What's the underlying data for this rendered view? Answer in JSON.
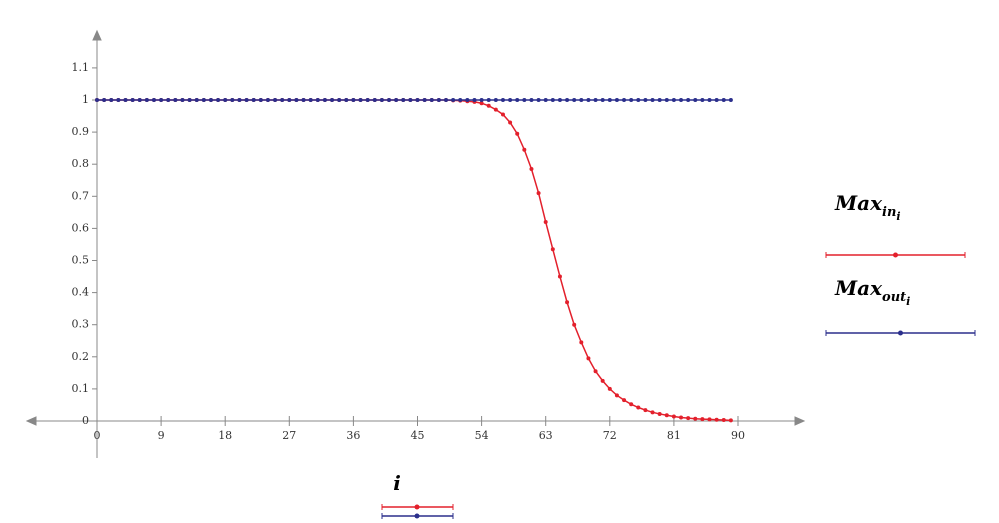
{
  "chart_data": {
    "type": "line",
    "x_label": "i",
    "x": [
      0,
      1,
      2,
      3,
      4,
      5,
      6,
      7,
      8,
      9,
      10,
      11,
      12,
      13,
      14,
      15,
      16,
      17,
      18,
      19,
      20,
      21,
      22,
      23,
      24,
      25,
      26,
      27,
      28,
      29,
      30,
      31,
      32,
      33,
      34,
      35,
      36,
      37,
      38,
      39,
      40,
      41,
      42,
      43,
      44,
      45,
      46,
      47,
      48,
      49,
      50,
      51,
      52,
      53,
      54,
      55,
      56,
      57,
      58,
      59,
      60,
      61,
      62,
      63,
      64,
      65,
      66,
      67,
      68,
      69,
      70,
      71,
      72,
      73,
      74,
      75,
      76,
      77,
      78,
      79,
      80,
      81,
      82,
      83,
      84,
      85,
      86,
      87,
      88,
      89
    ],
    "series": [
      {
        "name": "Max",
        "name_sub": "in",
        "name_subsub": "i",
        "color": "#e3202c",
        "values": [
          1,
          1,
          1,
          1,
          1,
          1,
          1,
          1,
          1,
          1,
          1,
          1,
          1,
          1,
          1,
          1,
          1,
          1,
          1,
          1,
          1,
          1,
          1,
          1,
          1,
          1,
          1,
          1,
          1,
          1,
          1,
          1,
          1,
          1,
          1,
          1,
          1,
          1,
          1,
          1,
          1,
          1,
          1,
          1,
          1,
          1,
          1,
          1,
          1,
          1,
          0.999,
          0.998,
          0.996,
          0.994,
          0.99,
          0.982,
          0.97,
          0.955,
          0.93,
          0.895,
          0.845,
          0.785,
          0.71,
          0.62,
          0.535,
          0.45,
          0.37,
          0.3,
          0.245,
          0.195,
          0.155,
          0.125,
          0.1,
          0.08,
          0.065,
          0.052,
          0.042,
          0.034,
          0.027,
          0.022,
          0.018,
          0.014,
          0.011,
          0.009,
          0.007,
          0.006,
          0.005,
          0.004,
          0.003,
          0.002
        ]
      },
      {
        "name": "Max",
        "name_sub": "out",
        "name_subsub": "i",
        "color": "#2b2f8c",
        "values": [
          1,
          1,
          1,
          1,
          1,
          1,
          1,
          1,
          1,
          1,
          1,
          1,
          1,
          1,
          1,
          1,
          1,
          1,
          1,
          1,
          1,
          1,
          1,
          1,
          1,
          1,
          1,
          1,
          1,
          1,
          1,
          1,
          1,
          1,
          1,
          1,
          1,
          1,
          1,
          1,
          1,
          1,
          1,
          1,
          1,
          1,
          1,
          1,
          1,
          1,
          1,
          1,
          1,
          1,
          1,
          1,
          1,
          1,
          1,
          1,
          1,
          1,
          1,
          1,
          1,
          1,
          1,
          1,
          1,
          1,
          1,
          1,
          1,
          1,
          1,
          1,
          1,
          1,
          1,
          1,
          1,
          1,
          1,
          1,
          1,
          1,
          1,
          1,
          1,
          1
        ]
      }
    ],
    "xlim": [
      -9,
      99
    ],
    "xticks": [
      0,
      9,
      18,
      27,
      36,
      45,
      54,
      63,
      72,
      81,
      90
    ],
    "ylim": [
      -0.115,
      1.2
    ],
    "yticks": [
      0,
      0.1,
      0.2,
      0.3,
      0.4,
      0.5,
      0.6,
      0.7,
      0.8,
      0.9,
      1,
      1.1
    ]
  }
}
